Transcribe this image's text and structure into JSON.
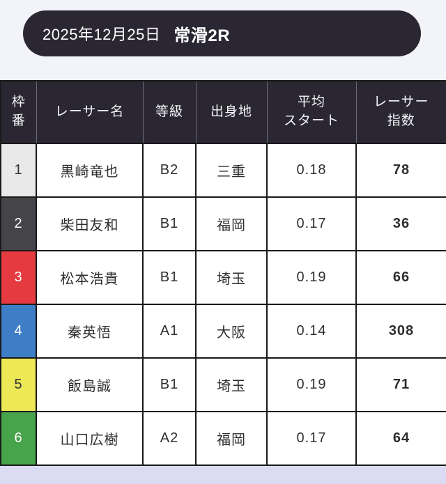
{
  "header": {
    "date": "2025年12月25日",
    "race": "常滑2R",
    "background_color": "#2a2733",
    "text_color": "#ffffff"
  },
  "page": {
    "background_color": "#f3f3fa",
    "footer_strip_color": "#dbdcf4"
  },
  "table": {
    "header_background_color": "#2a2733",
    "columns": [
      {
        "id": "frame",
        "label": "枠\n番"
      },
      {
        "id": "name",
        "label": "レーサー名"
      },
      {
        "id": "grade",
        "label": "等級"
      },
      {
        "id": "origin",
        "label": "出身地"
      },
      {
        "id": "avg_start",
        "label": "平均\nスタート"
      },
      {
        "id": "index",
        "label": "レーサー\n指数"
      }
    ],
    "rows": [
      {
        "frame": "1",
        "frame_color": "#e9e9e9",
        "frame_text_color": "#333333",
        "name": "黒崎竜也",
        "grade": "B2",
        "origin": "三重",
        "avg_start": "0.18",
        "index": "78"
      },
      {
        "frame": "2",
        "frame_color": "#454449",
        "frame_text_color": "#ffffff",
        "name": "柴田友和",
        "grade": "B1",
        "origin": "福岡",
        "avg_start": "0.17",
        "index": "36"
      },
      {
        "frame": "3",
        "frame_color": "#e53a40",
        "frame_text_color": "#ffffff",
        "name": "松本浩貴",
        "grade": "B1",
        "origin": "埼玉",
        "avg_start": "0.19",
        "index": "66"
      },
      {
        "frame": "4",
        "frame_color": "#3d7ec7",
        "frame_text_color": "#ffffff",
        "name": "秦英悟",
        "grade": "A1",
        "origin": "大阪",
        "avg_start": "0.14",
        "index": "308"
      },
      {
        "frame": "5",
        "frame_color": "#ede855",
        "frame_text_color": "#333333",
        "name": "飯島誠",
        "grade": "B1",
        "origin": "埼玉",
        "avg_start": "0.19",
        "index": "71"
      },
      {
        "frame": "6",
        "frame_color": "#48a44b",
        "frame_text_color": "#ffffff",
        "name": "山口広樹",
        "grade": "A2",
        "origin": "福岡",
        "avg_start": "0.17",
        "index": "64"
      }
    ]
  }
}
